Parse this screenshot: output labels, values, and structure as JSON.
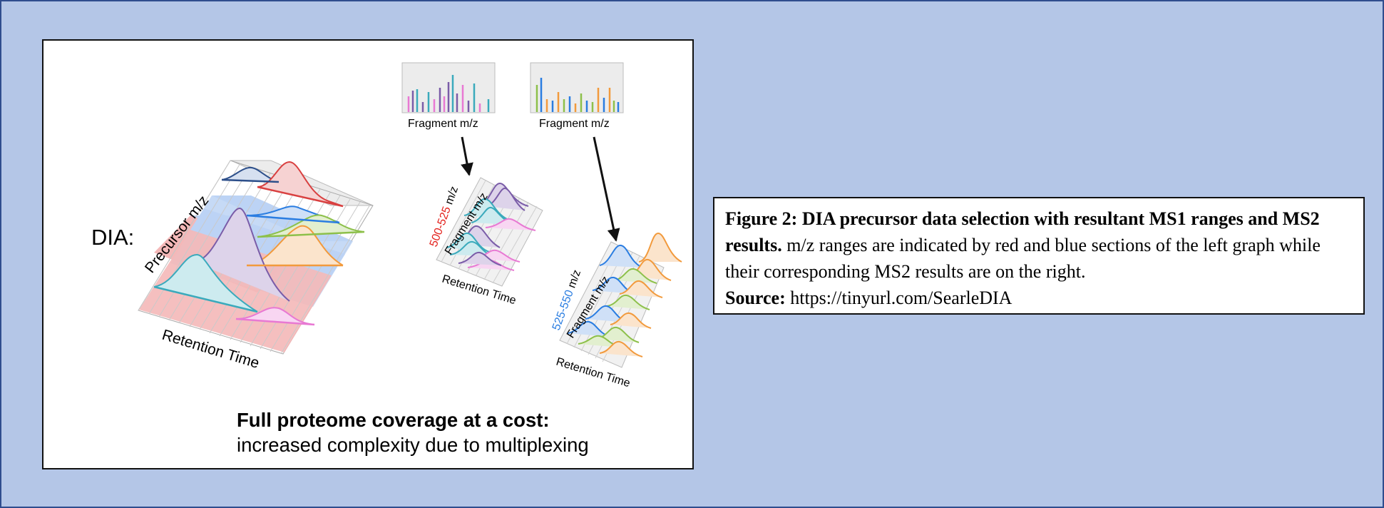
{
  "figure": {
    "dia_label": "DIA:",
    "precursor_axis": "Precursor m/z",
    "retention_axis": "Retention Time",
    "fragment_axis": "Fragment m/z",
    "fragment_label_1": "Fragment m/z",
    "fragment_label_2": "Fragment m/z",
    "range_1": {
      "text": "500-525",
      "unit": " m/z",
      "color": "#e3211c"
    },
    "range_2": {
      "text": "525-550",
      "unit": " m/z",
      "color": "#2a7de1"
    },
    "footer_bold": "Full proteome coverage at a cost:",
    "footer_normal": "increased complexity due to multiplexing"
  },
  "caption": {
    "title_bold": "Figure 2: DIA precursor data selection with resultant MS1 ranges and MS2 results.",
    "body": " m/z ranges are indicated by red and blue sections of the left graph while their corresponding MS2 results are on the right.",
    "source_label": "Source:",
    "source_url": " https://tinyurl.com/SearleDIA"
  },
  "colors": {
    "background": "#b4c6e7",
    "red_band": "#f4b8b8",
    "blue_band": "#bcd3f5",
    "teal": "#3aaabc",
    "purple": "#7a5ca8",
    "orange": "#f29a3c",
    "green": "#8dc04a",
    "pink": "#e879d3",
    "blue": "#2a7de1",
    "red": "#d94040",
    "navy": "#2d4f8a"
  }
}
